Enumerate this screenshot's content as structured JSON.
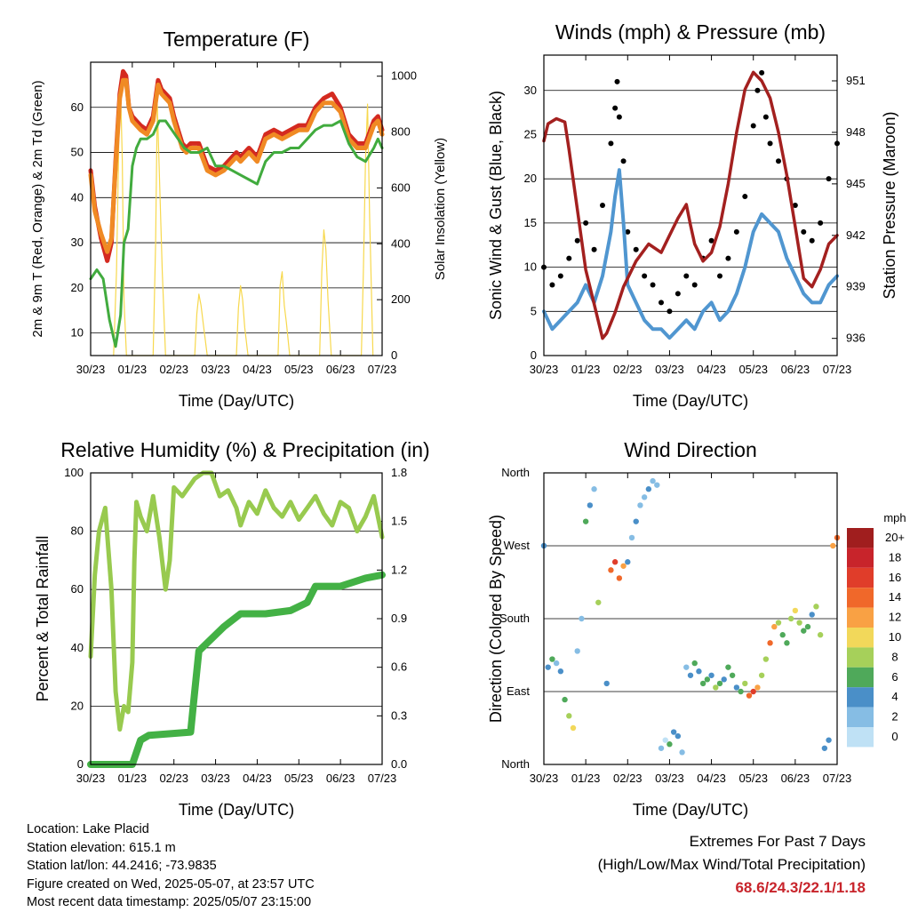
{
  "chart_data": [
    {
      "panel": "temperature",
      "type": "line",
      "title": "Temperature (F)",
      "xlabel": "Time (Day/UTC)",
      "ylabel": "2m & 9m T (Red, Orange) & 2m Td (Green)",
      "y2label": "Solar Insolation (Yellow)",
      "x_ticks": [
        "30/23",
        "01/23",
        "02/23",
        "03/23",
        "04/23",
        "05/23",
        "06/23",
        "07/23"
      ],
      "xlim": [
        0,
        7
      ],
      "ylim": [
        5,
        70
      ],
      "y_ticks": [
        10,
        20,
        30,
        40,
        50,
        60
      ],
      "y2lim": [
        0,
        1050
      ],
      "y2_ticks": [
        0,
        200,
        400,
        600,
        800,
        1000
      ],
      "grid": true,
      "series": [
        {
          "key": "t2m",
          "color": "#d42a20",
          "x": [
            0,
            0.1,
            0.25,
            0.4,
            0.5,
            0.6,
            0.7,
            0.78,
            0.85,
            0.92,
            1.0,
            1.1,
            1.2,
            1.35,
            1.5,
            1.62,
            1.7,
            1.8,
            1.9,
            2.0,
            2.1,
            2.2,
            2.3,
            2.4,
            2.6,
            2.8,
            3.0,
            3.2,
            3.4,
            3.5,
            3.6,
            3.8,
            4.0,
            4.2,
            4.4,
            4.6,
            4.8,
            5.0,
            5.2,
            5.4,
            5.6,
            5.8,
            6.0,
            6.2,
            6.4,
            6.6,
            6.8,
            6.9,
            7.0
          ],
          "y": [
            46,
            38,
            31,
            26,
            30,
            48,
            63,
            68,
            67,
            60,
            58,
            57,
            56,
            55,
            58,
            66,
            64,
            63,
            62,
            58,
            55,
            52,
            51,
            52,
            52,
            47,
            46,
            47,
            49,
            50,
            49,
            51,
            49,
            54,
            55,
            54,
            55,
            56,
            56,
            60,
            62,
            63,
            60,
            54,
            52,
            52,
            57,
            58,
            55
          ]
        },
        {
          "key": "t9m",
          "color": "#f08a24",
          "x": [
            0,
            0.1,
            0.25,
            0.4,
            0.5,
            0.6,
            0.7,
            0.78,
            0.85,
            0.92,
            1.0,
            1.1,
            1.2,
            1.35,
            1.5,
            1.62,
            1.7,
            1.8,
            1.9,
            2.0,
            2.1,
            2.2,
            2.3,
            2.4,
            2.6,
            2.8,
            3.0,
            3.2,
            3.4,
            3.5,
            3.6,
            3.8,
            4.0,
            4.2,
            4.4,
            4.6,
            4.8,
            5.0,
            5.2,
            5.4,
            5.6,
            5.8,
            6.0,
            6.2,
            6.4,
            6.6,
            6.8,
            6.9,
            7.0
          ],
          "y": [
            45,
            37,
            32,
            28,
            31,
            47,
            62,
            66,
            66,
            60,
            57,
            56,
            55,
            54,
            57,
            65,
            63,
            62,
            61,
            57,
            54,
            51,
            50,
            51,
            51,
            46,
            45,
            46,
            48,
            49,
            48,
            50,
            48,
            53,
            54,
            53,
            54,
            55,
            55,
            59,
            61,
            61,
            59,
            53,
            51,
            51,
            56,
            57,
            54
          ]
        },
        {
          "key": "td2m",
          "color": "#41ab3e",
          "x": [
            0,
            0.15,
            0.3,
            0.45,
            0.6,
            0.72,
            0.8,
            0.9,
            1.0,
            1.1,
            1.2,
            1.35,
            1.5,
            1.65,
            1.8,
            1.95,
            2.1,
            2.25,
            2.4,
            2.6,
            2.8,
            3.0,
            3.2,
            3.4,
            3.6,
            3.8,
            4.0,
            4.2,
            4.4,
            4.6,
            4.8,
            5.0,
            5.2,
            5.4,
            5.6,
            5.8,
            6.0,
            6.2,
            6.4,
            6.6,
            6.8,
            6.9,
            7.0
          ],
          "y": [
            22,
            24,
            22,
            13,
            7,
            14,
            30,
            33,
            47,
            51,
            53,
            53,
            54,
            57,
            57,
            55,
            53,
            51,
            50,
            50,
            51,
            47,
            47,
            46,
            45,
            44,
            43,
            48,
            50,
            50,
            51,
            51,
            53,
            55,
            56,
            56,
            57,
            52,
            49,
            48,
            51,
            53,
            51
          ]
        },
        {
          "key": "solar",
          "color": "#f7d84d",
          "x": [
            0.55,
            0.62,
            0.68,
            0.72,
            0.76,
            0.8,
            0.86,
            1.5,
            1.56,
            1.6,
            1.66,
            1.72,
            1.8,
            2.5,
            2.55,
            2.6,
            2.65,
            2.7,
            2.8,
            3.5,
            3.55,
            3.6,
            3.65,
            3.7,
            3.78,
            4.5,
            4.55,
            4.6,
            4.65,
            4.7,
            4.78,
            5.5,
            5.55,
            5.6,
            5.65,
            5.7,
            5.78,
            6.5,
            6.55,
            6.6,
            6.65,
            6.7,
            6.78
          ],
          "y": [
            0,
            300,
            800,
            950,
            700,
            200,
            0,
            0,
            400,
            900,
            600,
            300,
            0,
            0,
            150,
            220,
            180,
            120,
            0,
            0,
            170,
            250,
            200,
            100,
            0,
            0,
            250,
            300,
            180,
            120,
            0,
            0,
            300,
            450,
            380,
            200,
            0,
            0,
            300,
            700,
            900,
            500,
            0
          ]
        }
      ]
    },
    {
      "panel": "winds",
      "type": "scatter",
      "title": "Winds (mph) & Pressure (mb)",
      "xlabel": "Time (Day/UTC)",
      "ylabel": "Sonic Wind & Gust (Blue, Black)",
      "y2label": "Station Pressure (Maroon)",
      "x_ticks": [
        "30/23",
        "01/23",
        "02/23",
        "03/23",
        "04/23",
        "05/23",
        "06/23",
        "07/23"
      ],
      "xlim": [
        0,
        7
      ],
      "ylim": [
        0,
        34
      ],
      "y_ticks": [
        0,
        5,
        10,
        15,
        20,
        25,
        30
      ],
      "y2lim": [
        935,
        952.5
      ],
      "y2_ticks": [
        936,
        939,
        942,
        945,
        948,
        951
      ],
      "grid": true,
      "series": [
        {
          "key": "wind",
          "color": "#5096d0",
          "x": [
            0,
            0.2,
            0.4,
            0.6,
            0.8,
            1.0,
            1.2,
            1.4,
            1.6,
            1.7,
            1.8,
            1.9,
            2.0,
            2.2,
            2.4,
            2.6,
            2.8,
            3.0,
            3.2,
            3.4,
            3.6,
            3.8,
            4.0,
            4.2,
            4.4,
            4.6,
            4.8,
            5.0,
            5.2,
            5.4,
            5.6,
            5.8,
            6.0,
            6.2,
            6.4,
            6.6,
            6.8,
            7.0
          ],
          "y": [
            5,
            3,
            4,
            5,
            6,
            8,
            6,
            9,
            14,
            18,
            21,
            15,
            8,
            6,
            4,
            3,
            3,
            2,
            3,
            4,
            3,
            5,
            6,
            4,
            5,
            7,
            10,
            14,
            16,
            15,
            14,
            11,
            9,
            7,
            6,
            6,
            8,
            9
          ]
        },
        {
          "key": "gust",
          "color": "#000000",
          "x": [
            0,
            0.2,
            0.4,
            0.6,
            0.8,
            1.0,
            1.2,
            1.4,
            1.6,
            1.7,
            1.75,
            1.8,
            1.9,
            2.0,
            2.2,
            2.4,
            2.6,
            2.8,
            3.0,
            3.2,
            3.4,
            3.6,
            3.8,
            4.0,
            4.2,
            4.4,
            4.6,
            4.8,
            5.0,
            5.1,
            5.2,
            5.3,
            5.4,
            5.6,
            5.8,
            6.0,
            6.2,
            6.4,
            6.6,
            6.8,
            7.0
          ],
          "y": [
            10,
            8,
            9,
            11,
            13,
            15,
            12,
            17,
            24,
            28,
            31,
            27,
            22,
            14,
            12,
            9,
            8,
            6,
            5,
            7,
            9,
            8,
            11,
            13,
            9,
            11,
            14,
            18,
            26,
            30,
            32,
            27,
            24,
            22,
            20,
            17,
            14,
            13,
            15,
            20,
            24
          ]
        },
        {
          "key": "pressure",
          "color": "#a3201f",
          "x": [
            0,
            0.1,
            0.3,
            0.5,
            0.6,
            0.8,
            1.0,
            1.2,
            1.4,
            1.5,
            1.7,
            1.9,
            2.2,
            2.5,
            2.8,
            3.0,
            3.2,
            3.4,
            3.5,
            3.6,
            3.8,
            4.0,
            4.2,
            4.4,
            4.6,
            4.8,
            5.0,
            5.2,
            5.4,
            5.6,
            5.8,
            6.0,
            6.2,
            6.4,
            6.6,
            6.8,
            7.0
          ],
          "y": [
            947.5,
            948.5,
            948.8,
            948.6,
            947.0,
            943.5,
            940.0,
            938.0,
            936.0,
            936.3,
            937.5,
            939.0,
            940.5,
            941.5,
            941.0,
            942.0,
            943.0,
            943.8,
            942.6,
            941.5,
            940.5,
            941.0,
            942.5,
            945.0,
            948.0,
            950.5,
            951.5,
            951.0,
            950.0,
            948.0,
            945.5,
            942.5,
            939.5,
            939.0,
            940.0,
            941.5,
            942.0
          ]
        }
      ]
    },
    {
      "panel": "humidity",
      "type": "line",
      "title": "Relative Humidity (%) & Precipitation (in)",
      "xlabel": "Time (Day/UTC)",
      "ylabel": "Percent & Total Rainfall",
      "x_ticks": [
        "30/23",
        "01/23",
        "02/23",
        "03/23",
        "04/23",
        "05/23",
        "06/23",
        "07/23"
      ],
      "xlim": [
        0,
        7
      ],
      "ylim": [
        0,
        100
      ],
      "y_ticks": [
        0,
        20,
        40,
        60,
        80,
        100
      ],
      "y2lim": [
        0,
        1.8
      ],
      "y2_ticks": [
        "0.0",
        "0.3",
        "0.6",
        "0.9",
        "1.2",
        "1.5",
        "1.8"
      ],
      "grid": true,
      "series": [
        {
          "key": "rh",
          "color": "#98ca4f",
          "x": [
            0,
            0.1,
            0.2,
            0.35,
            0.5,
            0.6,
            0.7,
            0.8,
            0.9,
            1.0,
            1.05,
            1.1,
            1.2,
            1.35,
            1.5,
            1.65,
            1.8,
            1.9,
            2.0,
            2.2,
            2.4,
            2.5,
            2.7,
            2.9,
            3.1,
            3.3,
            3.5,
            3.6,
            3.8,
            4.0,
            4.2,
            4.4,
            4.6,
            4.8,
            5.0,
            5.2,
            5.4,
            5.6,
            5.8,
            6.0,
            6.2,
            6.4,
            6.6,
            6.8,
            7.0
          ],
          "y": [
            37,
            65,
            80,
            88,
            60,
            25,
            12,
            20,
            18,
            35,
            70,
            90,
            85,
            80,
            92,
            78,
            60,
            70,
            95,
            92,
            96,
            98,
            100,
            100,
            92,
            94,
            88,
            82,
            90,
            86,
            94,
            88,
            85,
            90,
            84,
            88,
            92,
            86,
            82,
            90,
            88,
            80,
            85,
            92,
            78
          ]
        },
        {
          "key": "precip",
          "color": "#43b145",
          "x": [
            0,
            0.6,
            1.0,
            1.2,
            1.4,
            2.4,
            2.5,
            2.6,
            2.8,
            3.2,
            3.6,
            4.2,
            4.8,
            5.2,
            5.4,
            6.0,
            6.6,
            7.0
          ],
          "y": [
            0,
            0,
            0,
            0.15,
            0.18,
            0.2,
            0.45,
            0.7,
            0.75,
            0.85,
            0.93,
            0.93,
            0.95,
            1.0,
            1.1,
            1.1,
            1.15,
            1.17
          ]
        }
      ]
    },
    {
      "panel": "wind_direction",
      "type": "scatter",
      "title": "Wind Direction",
      "xlabel": "Time (Day/UTC)",
      "ylabel": "Direction (Colored By Speed)",
      "x_ticks": [
        "30/23",
        "01/23",
        "02/23",
        "03/23",
        "04/23",
        "05/23",
        "06/23",
        "07/23"
      ],
      "xlim": [
        0,
        7
      ],
      "ylim": [
        0,
        360
      ],
      "y_ticks": [
        "North",
        "East",
        "South",
        "West",
        "North"
      ],
      "grid": true,
      "legend": {
        "title": "mph",
        "labels": [
          "20+",
          "18",
          "16",
          "14",
          "12",
          "10",
          "8",
          "6",
          "4",
          "2",
          "0"
        ],
        "colors": [
          "#a01e1e",
          "#c8242b",
          "#e03d2a",
          "#f0682a",
          "#f9a144",
          "#f2d85a",
          "#a6d05a",
          "#4fa95a",
          "#4a8fc8",
          "#86bde4",
          "#bfe1f5"
        ]
      },
      "points_x": [
        0,
        0.1,
        0.2,
        0.3,
        0.4,
        0.5,
        0.6,
        0.7,
        0.8,
        0.9,
        1.0,
        1.1,
        1.2,
        1.3,
        1.5,
        1.6,
        1.7,
        1.8,
        1.9,
        2.0,
        2.1,
        2.2,
        2.3,
        2.4,
        2.5,
        2.6,
        2.7,
        2.8,
        2.9,
        3.0,
        3.1,
        3.2,
        3.3,
        3.4,
        3.5,
        3.6,
        3.7,
        3.8,
        3.9,
        4.0,
        4.1,
        4.2,
        4.3,
        4.4,
        4.5,
        4.6,
        4.7,
        4.8,
        4.9,
        5.0,
        5.1,
        5.2,
        5.3,
        5.4,
        5.5,
        5.6,
        5.7,
        5.8,
        5.9,
        6.0,
        6.1,
        6.2,
        6.3,
        6.4,
        6.5,
        6.6,
        6.7,
        6.8,
        6.9,
        7.0
      ],
      "points_dir": [
        270,
        120,
        130,
        125,
        115,
        80,
        60,
        45,
        140,
        180,
        300,
        320,
        340,
        200,
        100,
        240,
        250,
        230,
        245,
        250,
        280,
        300,
        320,
        330,
        340,
        350,
        345,
        20,
        30,
        25,
        40,
        35,
        15,
        120,
        110,
        125,
        115,
        100,
        105,
        110,
        95,
        100,
        105,
        120,
        110,
        95,
        90,
        100,
        85,
        90,
        95,
        110,
        130,
        150,
        170,
        175,
        160,
        150,
        180,
        190,
        175,
        165,
        170,
        185,
        195,
        160,
        20,
        30,
        270,
        280
      ],
      "points_speed": [
        5,
        4,
        6,
        3,
        5,
        6,
        8,
        10,
        2,
        3,
        6,
        4,
        2,
        8,
        5,
        15,
        17,
        14,
        13,
        4,
        3,
        5,
        2,
        3,
        4,
        2,
        3,
        2,
        1,
        6,
        4,
        5,
        2,
        3,
        5,
        6,
        4,
        7,
        6,
        5,
        8,
        7,
        5,
        6,
        7,
        4,
        6,
        8,
        14,
        16,
        12,
        8,
        9,
        14,
        12,
        8,
        7,
        6,
        9,
        10,
        8,
        7,
        6,
        5,
        9,
        8,
        5,
        4,
        12,
        15
      ]
    }
  ],
  "footer": {
    "location": "Location: Lake Placid",
    "elevation": "Station elevation: 615.1 m",
    "latlon": "Station lat/lon: 44.2416; -73.9835",
    "created": "Figure created on Wed, 2025-05-07, at 23:57 UTC",
    "recent": "Most recent data timestamp: 2025/05/07 23:15:00"
  },
  "extremes": {
    "title": "Extremes For Past 7 Days",
    "subtitle": "(High/Low/Max Wind/Total Precipitation)",
    "values": "68.6/24.3/22.1/1.18"
  }
}
